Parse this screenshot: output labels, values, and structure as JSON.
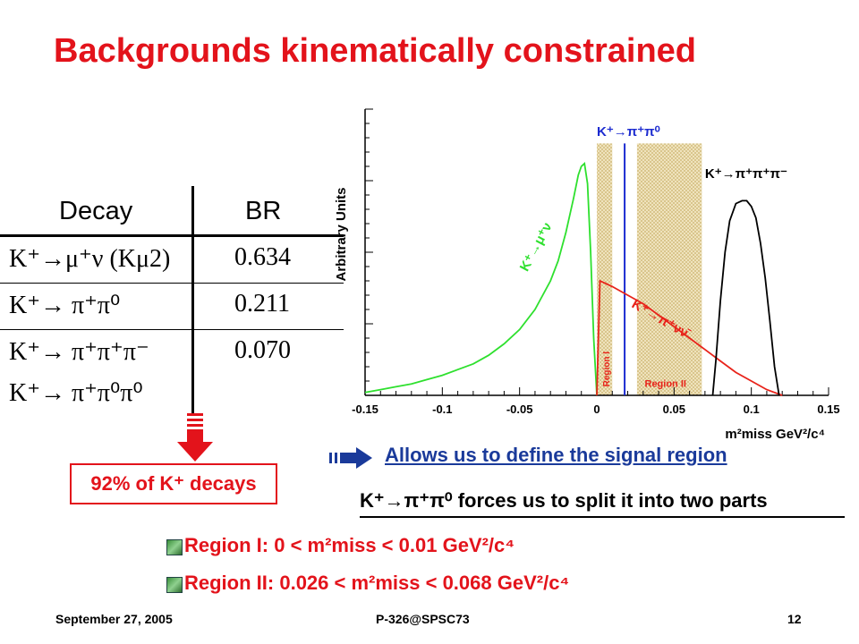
{
  "slide": {
    "title": "Backgrounds kinematically constrained",
    "accent_color": "#e3131b",
    "link_color": "#1a3a9a"
  },
  "table": {
    "headers": [
      "Decay",
      "BR"
    ],
    "rows": [
      {
        "decay": "K⁺→μ⁺ν (Kμ2)",
        "br": "0.634"
      },
      {
        "decay": "K⁺→ π⁺π⁰",
        "br": "0.211"
      },
      {
        "decay": "K⁺→ π⁺π⁺π⁻",
        "br": "0.070"
      },
      {
        "decay": "K⁺→ π⁺π⁰π⁰",
        "br": ""
      }
    ]
  },
  "summary_box": "92% of K⁺ decays",
  "arrow_icon": "right-arrow-icon",
  "down_arrow_icon": "down-arrow-icon",
  "allows_text": "Allows us to define the signal region",
  "forces_text": "K⁺→π⁺π⁰ forces us to split it into two parts",
  "regions": [
    {
      "label": "Region I:",
      "range": "0 < m²miss < 0.01 GeV²/c⁴"
    },
    {
      "label": "Region II:",
      "range": "0.026 < m²miss < 0.068 GeV²/c⁴"
    }
  ],
  "footer": {
    "date": "September 27, 2005",
    "center": "P-326@SPSC73",
    "page": "12"
  },
  "chart_data": {
    "type": "line",
    "ylabel": "Arbitrary Units",
    "xlabel": "m²miss GeV²/c⁴",
    "xlim": [
      -0.15,
      0.15
    ],
    "x_ticks": [
      -0.15,
      -0.1,
      -0.05,
      0,
      0.05,
      0.1,
      0.15
    ],
    "x_tick_labels": [
      "-0.15",
      "-0.1",
      "-0.05",
      "0",
      "0.05",
      "0.1",
      "0.15"
    ],
    "ylim": [
      0,
      1
    ],
    "grid": false,
    "shaded_regions": [
      {
        "name": "Region I",
        "x": [
          0,
          0.01
        ],
        "color": "#d8c28a"
      },
      {
        "name": "Region II",
        "x": [
          0.026,
          0.068
        ],
        "color": "#d8c28a"
      }
    ],
    "vertical_lines": [
      {
        "x": 0.018,
        "color": "#1c2bd0",
        "label": "K⁺→π⁺π⁰"
      }
    ],
    "series": [
      {
        "name": "K⁺→μ⁺ν",
        "color": "#2ee02e",
        "x": [
          -0.15,
          -0.14,
          -0.13,
          -0.12,
          -0.11,
          -0.1,
          -0.09,
          -0.08,
          -0.07,
          -0.06,
          -0.05,
          -0.04,
          -0.03,
          -0.025,
          -0.02,
          -0.015,
          -0.012,
          -0.01,
          -0.008,
          -0.006,
          -0.004,
          -0.002,
          0.0
        ],
        "y": [
          0.01,
          0.02,
          0.03,
          0.04,
          0.055,
          0.07,
          0.09,
          0.11,
          0.14,
          0.18,
          0.23,
          0.3,
          0.4,
          0.47,
          0.57,
          0.69,
          0.77,
          0.8,
          0.81,
          0.74,
          0.5,
          0.2,
          0.0
        ]
      },
      {
        "name": "K⁺→π⁺νν̄",
        "color": "#e8231a",
        "x": [
          0.0,
          0.002,
          0.006,
          0.01,
          0.02,
          0.03,
          0.04,
          0.05,
          0.06,
          0.07,
          0.08,
          0.09,
          0.1,
          0.11,
          0.12
        ],
        "y": [
          0.0,
          0.4,
          0.39,
          0.38,
          0.35,
          0.32,
          0.28,
          0.24,
          0.2,
          0.16,
          0.12,
          0.08,
          0.05,
          0.02,
          0.0
        ]
      },
      {
        "name": "K⁺→π⁺π⁺π⁻",
        "color": "#000000",
        "x": [
          0.075,
          0.077,
          0.08,
          0.083,
          0.086,
          0.09,
          0.094,
          0.097,
          0.1,
          0.103,
          0.106,
          0.109,
          0.112,
          0.115,
          0.118
        ],
        "y": [
          0.0,
          0.12,
          0.33,
          0.5,
          0.61,
          0.67,
          0.68,
          0.68,
          0.66,
          0.62,
          0.53,
          0.41,
          0.26,
          0.1,
          0.0
        ]
      }
    ],
    "annotations": [
      {
        "text": "K⁺→π⁺π⁰",
        "color": "#1c2bd0"
      },
      {
        "text": "K⁺→π⁺π⁺π⁻",
        "color": "#000000"
      },
      {
        "text": "K⁺→μ⁺ν",
        "color": "#2ee02e"
      },
      {
        "text": "K⁺→π⁺νν̄",
        "color": "#e8231a"
      },
      {
        "text": "Region I",
        "color": "#e8231a"
      },
      {
        "text": "Region II",
        "color": "#e8231a"
      }
    ]
  }
}
